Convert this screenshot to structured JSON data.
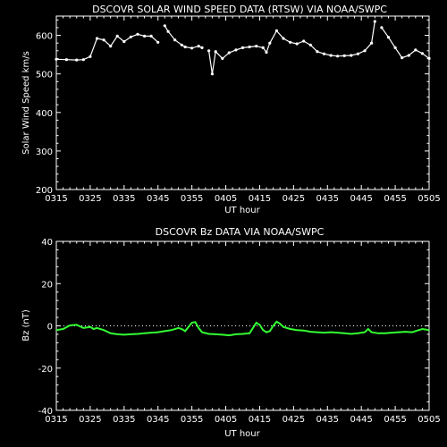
{
  "chart_data": [
    {
      "type": "line",
      "title": "DSCOVR SOLAR WIND SPEED DATA (RTSW) VIA NOAA/SWPC",
      "xlabel": "UT hour",
      "ylabel": "Solar Wind Speed km/s",
      "xlim": [
        "0315",
        "0505"
      ],
      "ylim": [
        200,
        650
      ],
      "x_ticks": [
        "0315",
        "0325",
        "0335",
        "0345",
        "0355",
        "0405",
        "0415",
        "0425",
        "0435",
        "0445",
        "0455",
        "0505"
      ],
      "y_ticks": [
        200,
        300,
        400,
        500,
        600
      ],
      "grid": false,
      "series": [
        {
          "color": "#ffffff",
          "points": [
            [
              "03:15",
              538
            ],
            [
              "03:18",
              537
            ],
            [
              "03:21",
              536
            ],
            [
              "03:23",
              537
            ],
            [
              "03:25",
              545
            ],
            [
              "03:27",
              592
            ],
            [
              "03:29",
              588
            ],
            [
              "03:31",
              572
            ],
            [
              "03:33",
              598
            ],
            [
              "03:35",
              584
            ],
            [
              "03:37",
              596
            ],
            [
              "03:39",
              603
            ],
            [
              "03:41",
              598
            ],
            [
              "03:43",
              598
            ],
            [
              "03:45",
              582
            ],
            [
              "03:46",
              null
            ],
            [
              "03:47",
              625
            ],
            [
              "03:48",
              610
            ],
            [
              "03:50",
              588
            ],
            [
              "03:52",
              575
            ],
            [
              "03:53",
              570
            ],
            [
              "03:55",
              567
            ],
            [
              "03:57",
              572
            ],
            [
              "03:58",
              568
            ],
            [
              "03:59",
              null
            ],
            [
              "04:00",
              560
            ],
            [
              "04:01",
              500
            ],
            [
              "04:02",
              558
            ],
            [
              "04:04",
              540
            ],
            [
              "04:06",
              555
            ],
            [
              "04:08",
              562
            ],
            [
              "04:10",
              568
            ],
            [
              "04:12",
              570
            ],
            [
              "04:14",
              572
            ],
            [
              "04:16",
              568
            ],
            [
              "04:17",
              556
            ],
            [
              "04:18",
              580
            ],
            [
              "04:20",
              612
            ],
            [
              "04:22",
              592
            ],
            [
              "04:24",
              582
            ],
            [
              "04:26",
              578
            ],
            [
              "04:28",
              585
            ],
            [
              "04:30",
              575
            ],
            [
              "04:32",
              558
            ],
            [
              "04:34",
              552
            ],
            [
              "04:36",
              548
            ],
            [
              "04:38",
              546
            ],
            [
              "04:40",
              547
            ],
            [
              "04:42",
              548
            ],
            [
              "04:44",
              552
            ],
            [
              "04:46",
              560
            ],
            [
              "04:48",
              580
            ],
            [
              "04:49",
              636
            ],
            [
              "04:50",
              null
            ],
            [
              "04:51",
              620
            ],
            [
              "04:53",
              595
            ],
            [
              "04:55",
              568
            ],
            [
              "04:57",
              542
            ],
            [
              "04:59",
              548
            ],
            [
              "05:01",
              562
            ],
            [
              "05:03",
              553
            ],
            [
              "05:05",
              540
            ]
          ]
        }
      ]
    },
    {
      "type": "line",
      "title": "DSCOVR Bz DATA VIA NOAA/SWPC",
      "xlabel": "UT hour",
      "ylabel": "Bz (nT)",
      "xlim": [
        "0315",
        "0505"
      ],
      "ylim": [
        -40,
        40
      ],
      "x_ticks": [
        "0315",
        "0325",
        "0335",
        "0345",
        "0355",
        "0405",
        "0415",
        "0425",
        "0435",
        "0445",
        "0455",
        "0505"
      ],
      "y_ticks": [
        -40,
        -20,
        0,
        20,
        40
      ],
      "reference_line": 0,
      "grid": false,
      "series": [
        {
          "color": "#33ff33",
          "points": [
            [
              "03:15",
              -2.0
            ],
            [
              "03:17",
              -1.5
            ],
            [
              "03:19",
              0.2
            ],
            [
              "03:21",
              0.5
            ],
            [
              "03:23",
              -1.0
            ],
            [
              "03:25",
              -0.5
            ],
            [
              "03:26",
              -1.5
            ],
            [
              "03:27",
              -1.0
            ],
            [
              "03:29",
              -2.0
            ],
            [
              "03:31",
              -3.5
            ],
            [
              "03:33",
              -4.0
            ],
            [
              "03:35",
              -4.2
            ],
            [
              "03:37",
              -4.0
            ],
            [
              "03:39",
              -3.8
            ],
            [
              "03:41",
              -3.5
            ],
            [
              "03:43",
              -3.2
            ],
            [
              "03:45",
              -3.0
            ],
            [
              "03:47",
              -2.5
            ],
            [
              "03:49",
              -2.0
            ],
            [
              "03:51",
              -1.0
            ],
            [
              "03:52",
              -1.5
            ],
            [
              "03:53",
              -2.5
            ],
            [
              "03:55",
              1.5
            ],
            [
              "03:56",
              1.8
            ],
            [
              "03:57",
              -1.0
            ],
            [
              "03:58",
              -3.0
            ],
            [
              "04:00",
              -3.8
            ],
            [
              "04:02",
              -4.0
            ],
            [
              "04:04",
              -4.2
            ],
            [
              "04:06",
              -4.5
            ],
            [
              "04:08",
              -4.0
            ],
            [
              "04:10",
              -3.8
            ],
            [
              "04:12",
              -3.5
            ],
            [
              "04:13",
              -1.0
            ],
            [
              "04:14",
              1.5
            ],
            [
              "04:15",
              0.5
            ],
            [
              "04:16",
              -2.0
            ],
            [
              "04:17",
              -3.0
            ],
            [
              "04:18",
              -2.5
            ],
            [
              "04:19",
              0.0
            ],
            [
              "04:20",
              2.0
            ],
            [
              "04:21",
              1.0
            ],
            [
              "04:22",
              -0.5
            ],
            [
              "04:24",
              -1.5
            ],
            [
              "04:26",
              -2.0
            ],
            [
              "04:28",
              -2.2
            ],
            [
              "04:30",
              -2.8
            ],
            [
              "04:32",
              -3.0
            ],
            [
              "04:34",
              -3.2
            ],
            [
              "04:36",
              -3.0
            ],
            [
              "04:38",
              -3.2
            ],
            [
              "04:40",
              -3.5
            ],
            [
              "04:42",
              -3.8
            ],
            [
              "04:44",
              -3.5
            ],
            [
              "04:46",
              -3.0
            ],
            [
              "04:47",
              -1.5
            ],
            [
              "04:48",
              -3.0
            ],
            [
              "04:50",
              -3.5
            ],
            [
              "04:52",
              -3.5
            ],
            [
              "04:54",
              -3.2
            ],
            [
              "04:56",
              -3.0
            ],
            [
              "04:58",
              -2.8
            ],
            [
              "05:00",
              -3.0
            ],
            [
              "05:02",
              -2.0
            ],
            [
              "05:03",
              -1.5
            ],
            [
              "05:05",
              -2.0
            ]
          ]
        }
      ]
    }
  ]
}
